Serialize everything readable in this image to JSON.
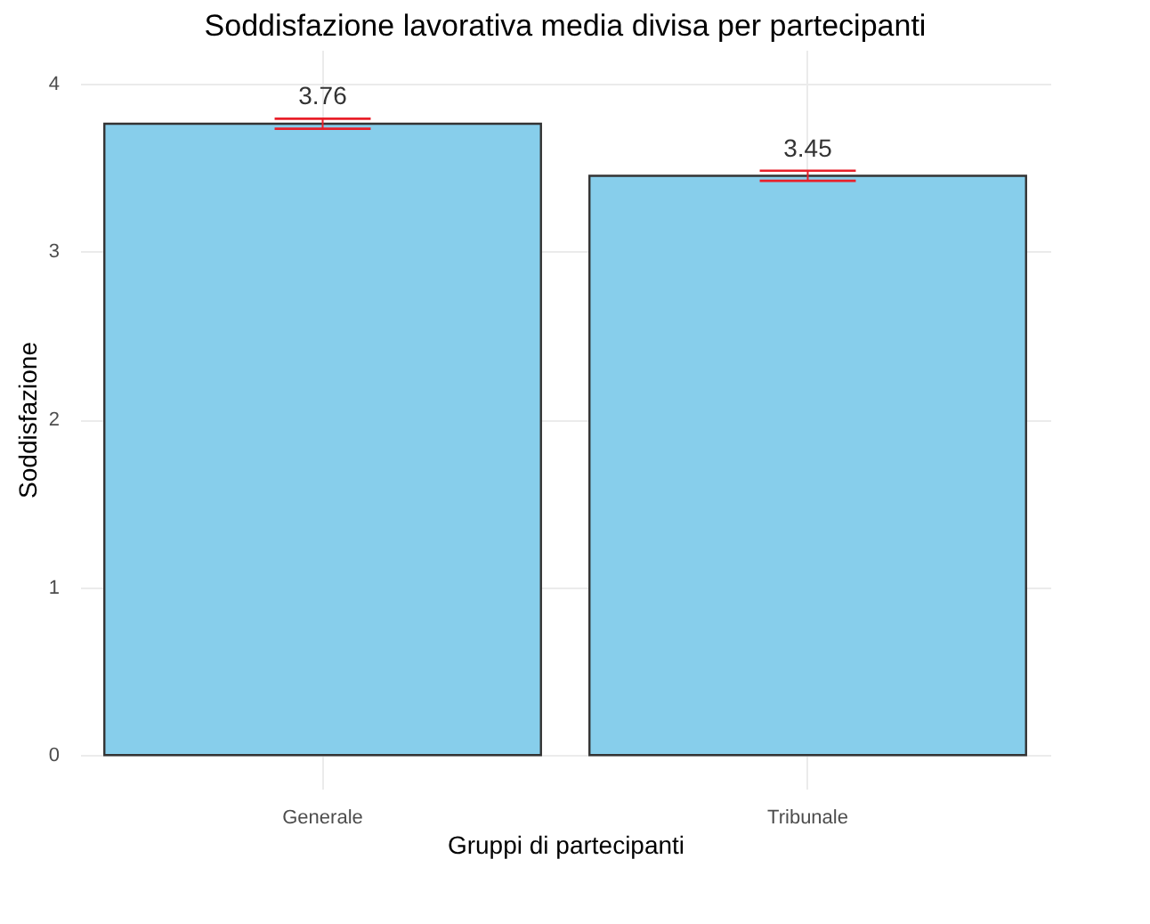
{
  "chart_data": {
    "type": "bar",
    "title": "Soddisfazione lavorativa media divisa per partecipanti",
    "xlabel": "Gruppi di partecipanti",
    "ylabel": "Soddisfazione",
    "categories": [
      "Generale",
      "Tribunale"
    ],
    "values": [
      3.76,
      3.45
    ],
    "color": "#87ceeb",
    "errors": [
      0.03,
      0.03
    ],
    "ylim": [
      -0.2,
      4.2
    ],
    "yticks": [
      0,
      1,
      2,
      3,
      4
    ],
    "grid": true,
    "data_labels": true
  }
}
